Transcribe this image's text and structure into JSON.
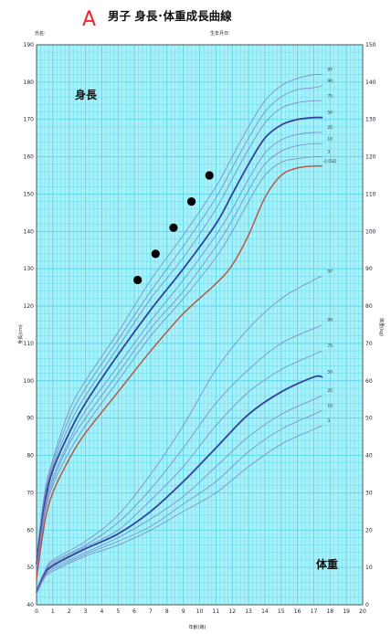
{
  "header": {
    "marker": "A",
    "title": "男子  身長･体重成長曲線",
    "name_label": "氏名:",
    "birth_label": "生年月日:"
  },
  "colors": {
    "grid_bg": "#a8f0fa",
    "grid_line": "#4fd3e6",
    "percentile": "#7c86c2",
    "median": "#33419a",
    "patient_height": "#b8503c",
    "points": "#000000",
    "marker": "#e8262b"
  },
  "chart_data": {
    "type": "line",
    "xlabel": "年齢(歳)",
    "ylabel_left": "身長(cm)",
    "ylabel_right": "体重(kg)",
    "xlim": [
      0,
      20
    ],
    "ylim_left": [
      40,
      190
    ],
    "ylim_right": [
      0,
      150
    ],
    "x_ticks": [
      "0",
      "1",
      "2",
      "3",
      "4",
      "5",
      "6",
      "7",
      "8",
      "9",
      "10",
      "11",
      "12",
      "13",
      "14",
      "15",
      "16",
      "17",
      "18",
      "19",
      "20"
    ],
    "y_ticks_left": [
      "40",
      "50",
      "60",
      "70",
      "80",
      "90",
      "100",
      "110",
      "120",
      "130",
      "140",
      "150",
      "160",
      "170",
      "180",
      "190"
    ],
    "y_ticks_right": [
      "0",
      "10",
      "20",
      "30",
      "40",
      "50",
      "60",
      "70",
      "80",
      "90",
      "100",
      "110",
      "120",
      "130",
      "140",
      "150"
    ],
    "height_label": "身長",
    "weight_label": "体重",
    "height_percentiles": [
      {
        "name": "97",
        "x": [
          0,
          0.5,
          1,
          2,
          3,
          5,
          7,
          9,
          11,
          12,
          13,
          14,
          15,
          16,
          17,
          17.5
        ],
        "y": [
          53,
          70,
          79,
          92,
          100,
          113,
          127,
          139,
          152,
          160,
          168,
          175,
          179,
          181,
          182,
          182
        ]
      },
      {
        "name": "90",
        "x": [
          0,
          0.5,
          1,
          2,
          3,
          5,
          7,
          9,
          11,
          12,
          13,
          14,
          15,
          16,
          17,
          17.5
        ],
        "y": [
          52,
          69,
          78,
          90,
          98,
          111,
          124,
          136,
          149,
          157,
          165,
          172,
          176,
          178,
          178.5,
          179
        ]
      },
      {
        "name": "75",
        "x": [
          0,
          0.5,
          1,
          2,
          3,
          5,
          7,
          9,
          11,
          12,
          13,
          14,
          15,
          16,
          17,
          17.5
        ],
        "y": [
          51.5,
          68,
          77,
          88,
          96,
          109,
          122,
          133,
          146,
          154,
          162,
          169,
          173,
          174.5,
          175,
          175
        ]
      },
      {
        "name": "50",
        "x": [
          0,
          0.5,
          1,
          2,
          3,
          5,
          7,
          9,
          11,
          12,
          13,
          14,
          15,
          16,
          17,
          17.5
        ],
        "y": [
          51,
          67,
          76,
          86,
          94,
          107,
          119,
          130,
          142,
          150,
          158,
          165,
          168.5,
          170,
          170.5,
          170.5
        ]
      },
      {
        "name": "25",
        "x": [
          0,
          0.5,
          1,
          2,
          3,
          5,
          7,
          9,
          11,
          12,
          13,
          14,
          15,
          16,
          17,
          17.5
        ],
        "y": [
          50,
          66,
          74,
          84,
          92,
          104,
          116,
          127,
          139,
          146,
          154,
          161,
          164.5,
          166,
          166.5,
          166.5
        ]
      },
      {
        "name": "10",
        "x": [
          0,
          0.5,
          1,
          2,
          3,
          5,
          7,
          9,
          11,
          12,
          13,
          14,
          15,
          16,
          17,
          17.5
        ],
        "y": [
          49,
          65,
          73,
          83,
          90,
          102,
          114,
          124,
          136,
          143,
          151,
          158,
          161.5,
          163,
          163.5,
          163.5
        ]
      },
      {
        "name": "3",
        "x": [
          0,
          0.5,
          1,
          2,
          3,
          5,
          7,
          9,
          11,
          12,
          13,
          14,
          15,
          16,
          17,
          17.5
        ],
        "y": [
          48,
          64,
          72,
          81,
          88,
          100,
          112,
          122,
          133,
          140,
          148,
          155,
          158.5,
          159.5,
          160,
          160
        ]
      }
    ],
    "height_sd": {
      "name": "-2.0SD",
      "x": [
        0,
        0.5,
        1,
        2,
        3,
        5,
        7,
        9,
        11,
        12,
        13,
        14,
        15,
        16,
        17,
        17.5
      ],
      "y": [
        47,
        62,
        70,
        79,
        86,
        97,
        108,
        118,
        126,
        131,
        139,
        149,
        155,
        157,
        157.5,
        157.5
      ]
    },
    "height_points": {
      "x": [
        6.2,
        7.3,
        8.4,
        9.5,
        10.6
      ],
      "y": [
        127,
        134,
        141,
        148,
        155
      ]
    },
    "weight_percentiles": [
      {
        "name": "97",
        "x": [
          0,
          0.5,
          1,
          3,
          5,
          7,
          9,
          11,
          13,
          15,
          17,
          17.5
        ],
        "y": [
          4,
          9,
          12,
          17,
          24,
          35,
          48,
          63,
          74,
          82,
          87,
          88
        ]
      },
      {
        "name": "90",
        "x": [
          0,
          0.5,
          1,
          3,
          5,
          7,
          9,
          11,
          13,
          15,
          17,
          17.5
        ],
        "y": [
          3.8,
          8.8,
          11.5,
          16,
          22,
          31,
          42,
          54,
          63,
          70,
          74,
          75
        ]
      },
      {
        "name": "75",
        "x": [
          0,
          0.5,
          1,
          3,
          5,
          7,
          9,
          11,
          13,
          15,
          17,
          17.5
        ],
        "y": [
          3.6,
          8.5,
          11,
          15.5,
          20,
          28,
          37,
          48,
          57,
          63,
          67,
          68
        ]
      },
      {
        "name": "50",
        "x": [
          0,
          0.5,
          1,
          3,
          5,
          7,
          9,
          11,
          13,
          15,
          17,
          17.5
        ],
        "y": [
          3.4,
          8.2,
          10.5,
          15,
          19,
          25,
          33,
          42,
          51,
          57,
          61,
          61
        ]
      },
      {
        "name": "25",
        "x": [
          0,
          0.5,
          1,
          3,
          5,
          7,
          9,
          11,
          13,
          15,
          17,
          17.5
        ],
        "y": [
          3.2,
          7.9,
          10,
          14,
          18,
          23,
          29,
          37,
          45,
          51,
          55,
          56
        ]
      },
      {
        "name": "10",
        "x": [
          0,
          0.5,
          1,
          3,
          5,
          7,
          9,
          11,
          13,
          15,
          17,
          17.5
        ],
        "y": [
          3,
          7.6,
          9.5,
          13.5,
          17,
          21,
          27,
          33,
          41,
          47,
          51,
          52
        ]
      },
      {
        "name": "3",
        "x": [
          0,
          0.5,
          1,
          3,
          5,
          7,
          9,
          11,
          13,
          15,
          17,
          17.5
        ],
        "y": [
          2.8,
          7.3,
          9,
          13,
          16,
          20,
          25,
          30,
          37,
          43,
          47,
          48
        ]
      }
    ],
    "grid": true,
    "legend": "inline-right"
  }
}
